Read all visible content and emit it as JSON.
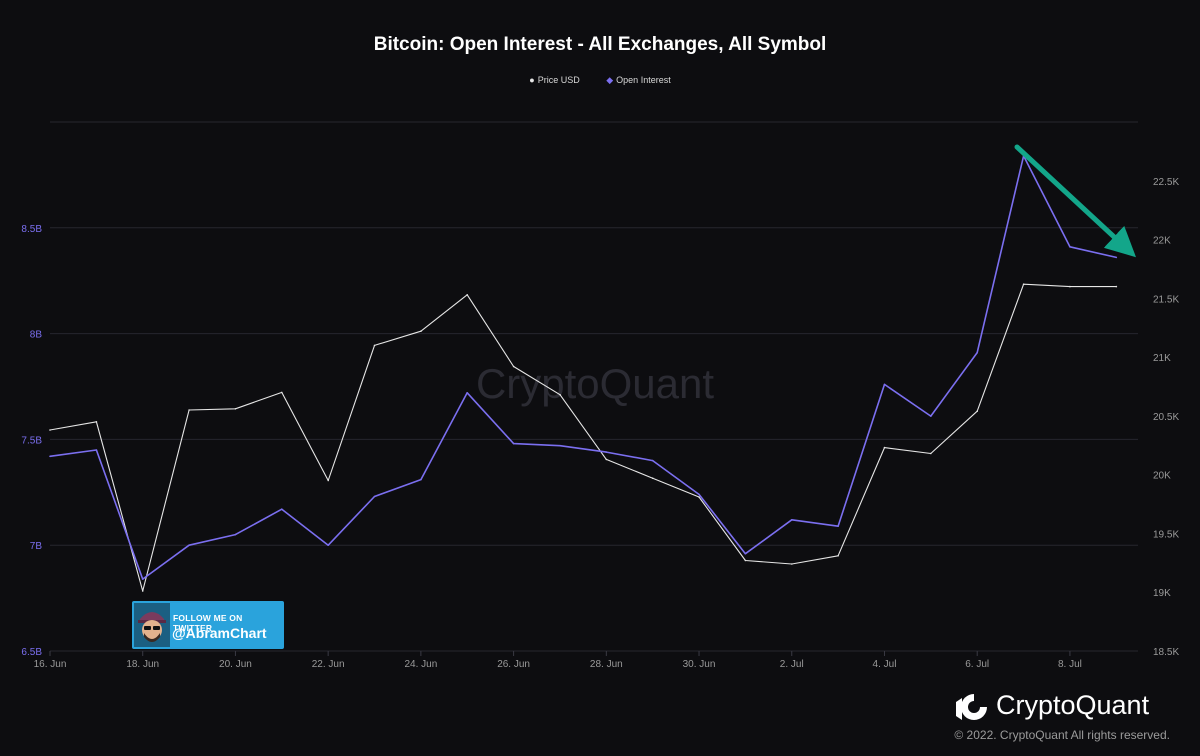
{
  "chart_data": {
    "type": "line",
    "title": "Bitcoin: Open Interest - All Exchanges, All Symbol",
    "legend_position": "top-center",
    "grid": true,
    "watermark": "CryptoQuant",
    "x": [
      "2022-06-16",
      "2022-06-17",
      "2022-06-18",
      "2022-06-19",
      "2022-06-20",
      "2022-06-21",
      "2022-06-22",
      "2022-06-23",
      "2022-06-24",
      "2022-06-25",
      "2022-06-26",
      "2022-06-27",
      "2022-06-28",
      "2022-06-29",
      "2022-06-30",
      "2022-07-01",
      "2022-07-02",
      "2022-07-03",
      "2022-07-04",
      "2022-07-05",
      "2022-07-06",
      "2022-07-07",
      "2022-07-08",
      "2022-07-09"
    ],
    "x_ticks": [
      "16. Jun",
      "18. Jun",
      "20. Jun",
      "22. Jun",
      "24. Jun",
      "26. Jun",
      "28. Jun",
      "30. Jun",
      "2. Jul",
      "4. Jul",
      "6. Jul",
      "8. Jul"
    ],
    "x_tick_dates": [
      "2022-06-16",
      "2022-06-18",
      "2022-06-20",
      "2022-06-22",
      "2022-06-24",
      "2022-06-26",
      "2022-06-28",
      "2022-06-30",
      "2022-07-02",
      "2022-07-04",
      "2022-07-06",
      "2022-07-08"
    ],
    "y_left": {
      "ylim": [
        6500000000,
        9000000000
      ],
      "ticks": [
        "6.5B",
        "7B",
        "7.5B",
        "8B",
        "8.5B"
      ],
      "tick_values": [
        6500000000,
        7000000000,
        7500000000,
        8000000000,
        8500000000
      ]
    },
    "y_right": {
      "ylim": [
        18500,
        23000
      ],
      "ticks": [
        "18.5K",
        "19K",
        "19.5K",
        "20K",
        "20.5K",
        "21K",
        "21.5K",
        "22K",
        "22.5K"
      ],
      "tick_values": [
        18500,
        19000,
        19500,
        20000,
        20500,
        21000,
        21500,
        22000,
        22500
      ]
    },
    "series": [
      {
        "name": "Price USD",
        "axis": "right",
        "color": "#e6e6e6",
        "marker": "circle",
        "values": [
          20380,
          20450,
          19010,
          20550,
          20560,
          20700,
          19950,
          21100,
          21220,
          21530,
          20920,
          20680,
          20130,
          19970,
          19810,
          19270,
          19240,
          19310,
          20230,
          20180,
          20540,
          21620,
          21600,
          21600
        ]
      },
      {
        "name": "Open Interest",
        "axis": "left",
        "color": "#7b6ff0",
        "marker": "diamond",
        "values": [
          7420000000,
          7450000000,
          6840000000,
          7000000000,
          7050000000,
          7170000000,
          7000000000,
          7230000000,
          7310000000,
          7720000000,
          7480000000,
          7470000000,
          7440000000,
          7400000000,
          7240000000,
          6960000000,
          7120000000,
          7090000000,
          7760000000,
          7610000000,
          7910000000,
          8840000000,
          8410000000,
          8360000000
        ]
      }
    ],
    "annotations": [
      {
        "type": "arrow",
        "color": "#13a68a",
        "direction": "down-right"
      }
    ]
  },
  "twitter_badge": {
    "follow_text": "FOLLOW ME ON TWITTER",
    "handle": "@AbramChart"
  },
  "brand": {
    "name": "CryptoQuant",
    "copyright": "© 2022. CryptoQuant All rights reserved."
  }
}
